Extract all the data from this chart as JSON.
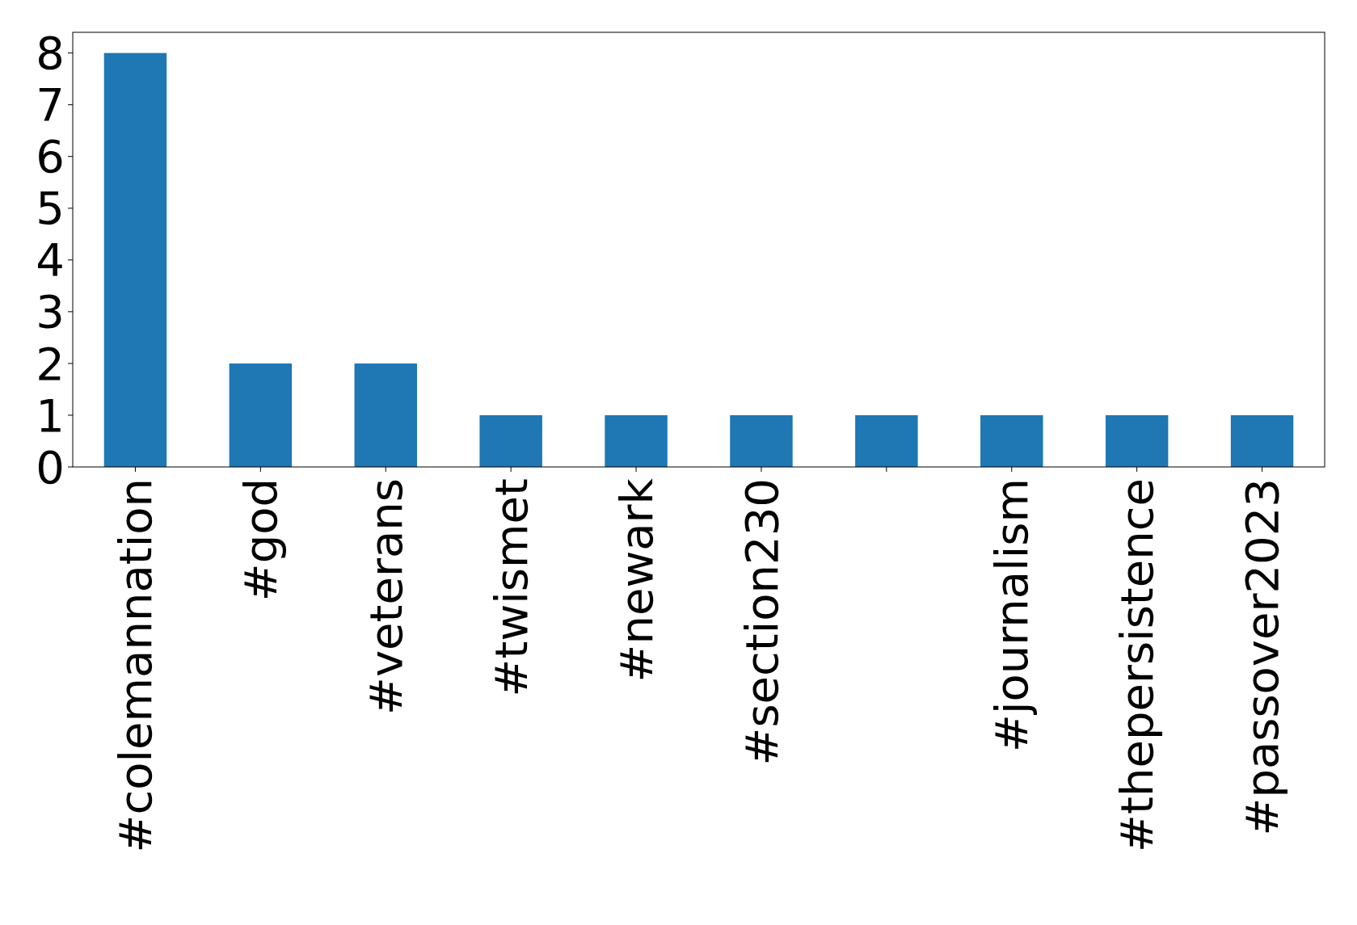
{
  "chart_data": {
    "type": "bar",
    "categories": [
      "#colemannation",
      "#god",
      "#veterans",
      "#twismet",
      "#newark",
      "#section230",
      null,
      "#journalism",
      "#thepersistence",
      "#passover2023"
    ],
    "values": [
      8,
      2,
      2,
      1,
      1,
      1,
      1,
      1,
      1,
      1
    ],
    "color": "#1f77b4",
    "ylim": [
      0,
      8.4
    ],
    "yticks": [
      0,
      1,
      2,
      3,
      4,
      5,
      6,
      7,
      8
    ],
    "grid": false
  }
}
